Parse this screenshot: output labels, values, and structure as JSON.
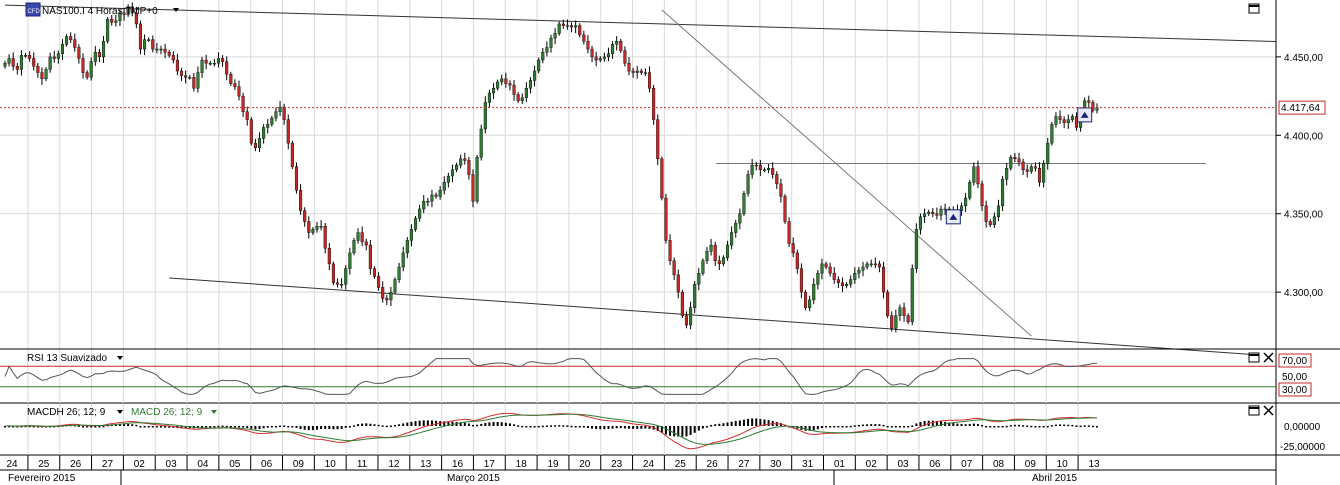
{
  "chart_data": [
    {
      "type": "candlestick",
      "title": "NAS100.I 4 Horas TMP+0",
      "y_ticks": [
        "4.450,00",
        "4.400,00",
        "4.350,00",
        "4.300,00"
      ],
      "ylim": [
        4265,
        4485
      ],
      "current_price_label": "4.417,64",
      "current_price": 4417.64,
      "resistance_level": 4382,
      "upper_channel_line": {
        "from": {
          "x_index": 0,
          "y": 4483
        },
        "to": {
          "x_index": 320,
          "y": 4459
        }
      },
      "lower_channel_line": {
        "from": {
          "x_index": 40,
          "y": 4309
        },
        "to": {
          "x_index": 305,
          "y": 4260
        }
      },
      "falling_trendline": {
        "from": {
          "x_index": 160,
          "y": 4480
        },
        "to": {
          "x_index": 250,
          "y": 4272
        }
      },
      "markers": [
        {
          "x_index": 231,
          "y": 4348
        },
        {
          "x_index": 263,
          "y": 4413
        }
      ],
      "closes": [
        4446,
        4449,
        4444,
        4442,
        4451,
        4451,
        4449,
        4444,
        4440,
        4436,
        4442,
        4450,
        4449,
        4452,
        4458,
        4463,
        4461,
        4456,
        4449,
        4440,
        4437,
        4447,
        4453,
        4450,
        4460,
        4474,
        4472,
        4473,
        4478,
        4477,
        4482,
        4478,
        4471,
        4455,
        4461,
        4461,
        4455,
        4455,
        4455,
        4453,
        4451,
        4448,
        4441,
        4438,
        4437,
        4437,
        4430,
        4440,
        4448,
        4446,
        4446,
        4446,
        4449,
        4447,
        4439,
        4433,
        4431,
        4425,
        4415,
        4410,
        4395,
        4392,
        4398,
        4405,
        4407,
        4411,
        4415,
        4418,
        4410,
        4395,
        4380,
        4365,
        4352,
        4345,
        4338,
        4340,
        4342,
        4342,
        4328,
        4318,
        4306,
        4305,
        4305,
        4315,
        4325,
        4333,
        4338,
        4332,
        4330,
        4315,
        4310,
        4303,
        4296,
        4295,
        4300,
        4308,
        4316,
        4325,
        4333,
        4340,
        4347,
        4353,
        4358,
        4358,
        4362,
        4361,
        4365,
        4370,
        4374,
        4378,
        4381,
        4385,
        4384,
        4375,
        4358,
        4386,
        4404,
        4421,
        4427,
        4430,
        4434,
        4436,
        4433,
        4432,
        4426,
        4422,
        4424,
        4430,
        4435,
        4441,
        4448,
        4453,
        4456,
        4462,
        4465,
        4471,
        4470,
        4470,
        4469,
        4470,
        4464,
        4460,
        4455,
        4450,
        4448,
        4449,
        4450,
        4452,
        4458,
        4460,
        4454,
        4446,
        4441,
        4440,
        4441,
        4440,
        4440,
        4430,
        4410,
        4385,
        4360,
        4333,
        4320,
        4311,
        4300,
        4285,
        4279,
        4290,
        4305,
        4312,
        4320,
        4326,
        4330,
        4320,
        4318,
        4322,
        4330,
        4338,
        4344,
        4350,
        4363,
        4375,
        4381,
        4381,
        4378,
        4378,
        4379,
        4375,
        4369,
        4361,
        4345,
        4331,
        4325,
        4315,
        4300,
        4290,
        4295,
        4305,
        4312,
        4318,
        4316,
        4312,
        4308,
        4306,
        4304,
        4305,
        4308,
        4312,
        4314,
        4316,
        4318,
        4318,
        4318,
        4316,
        4300,
        4285,
        4277,
        4285,
        4290,
        4285,
        4281,
        4315,
        4340,
        4348,
        4350,
        4351,
        4350,
        4349,
        4353,
        4353,
        4352,
        4350,
        4352,
        4355,
        4360,
        4370,
        4380,
        4369,
        4355,
        4345,
        4343,
        4348,
        4355,
        4372,
        4379,
        4386,
        4385,
        4383,
        4378,
        4377,
        4380,
        4379,
        4370,
        4382,
        4395,
        4407,
        4412,
        4410,
        4408,
        4410,
        4412,
        4405,
        4412,
        4422,
        4421,
        4416,
        4417.64
      ]
    },
    {
      "type": "line",
      "title": "RSI 13 Suavizado",
      "ylim": [
        0,
        100
      ],
      "levels": {
        "overbought": 70,
        "oversold": 30,
        "mid": 50
      },
      "tick_labels": [
        "70,00",
        "50,00",
        "30,00"
      ]
    },
    {
      "type": "histogram+line",
      "title": "MACDH 26; 12; 9",
      "signal_title": "MACD 26; 12; 9",
      "tick_labels": [
        "0,00000",
        "-25,00000"
      ]
    }
  ],
  "x_axis": {
    "day_labels": [
      "24",
      "25",
      "26",
      "27",
      "02",
      "03",
      "04",
      "05",
      "06",
      "09",
      "10",
      "11",
      "12",
      "13",
      "16",
      "17",
      "18",
      "19",
      "20",
      "23",
      "24",
      "25",
      "26",
      "27",
      "30",
      "31",
      "01",
      "02",
      "03",
      "06",
      "07",
      "08",
      "09",
      "10",
      "13"
    ],
    "month_labels": [
      "Fevereiro 2015",
      "Março 2015",
      "Abril 2015"
    ]
  },
  "colors": {
    "up": "#2e7d32",
    "down": "#c62828",
    "price_line": "#c62828",
    "rsi_band": "#c62828",
    "rsi_oversold": "#2e7d32",
    "macd": "#d32f2f",
    "signal": "#2e7d32"
  },
  "icons": {
    "logo": "cfd-logo-icon",
    "maximize": "maximize-icon",
    "close": "close-icon",
    "dropdown": "dropdown-arrow-icon"
  }
}
